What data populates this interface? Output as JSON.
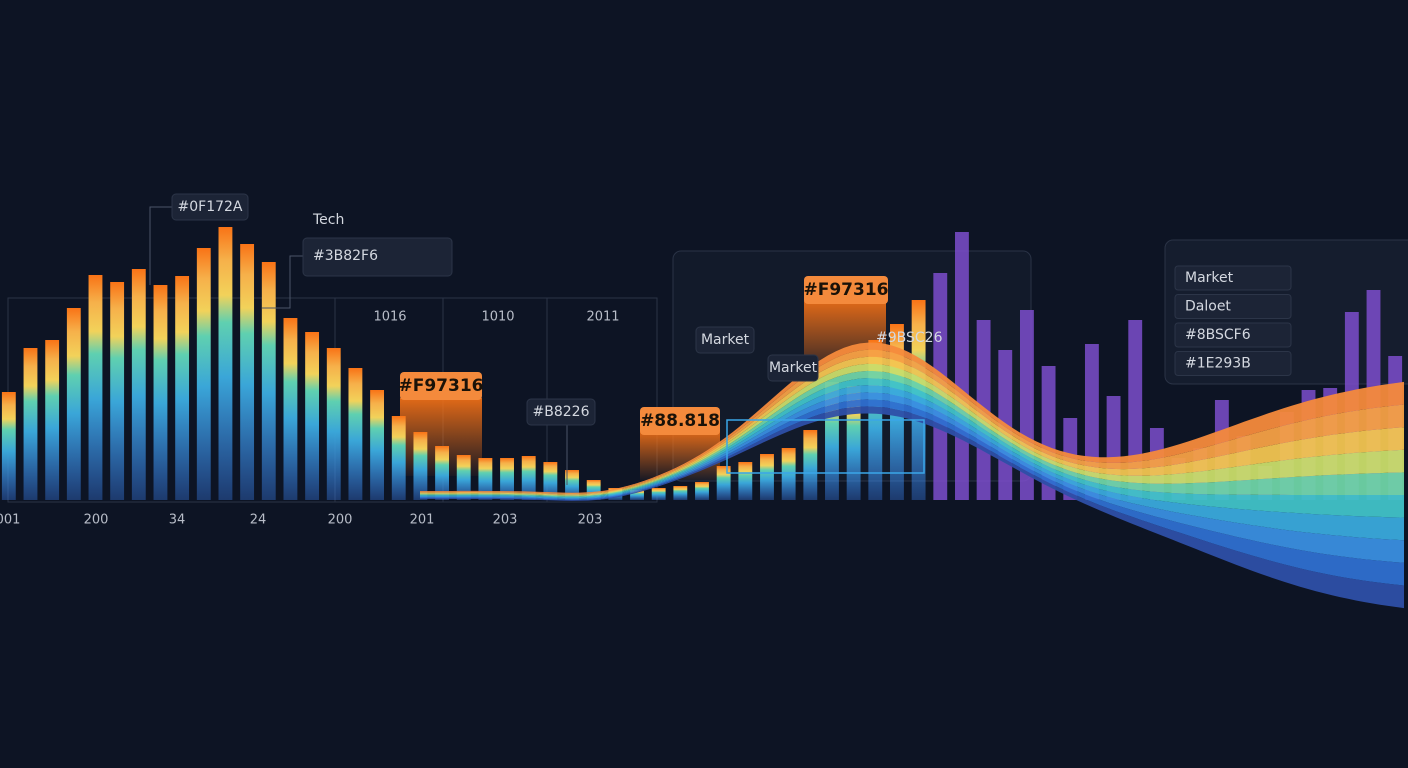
{
  "chart_data": {
    "type": "bar",
    "categories": [
      null,
      null,
      null,
      null,
      null,
      null,
      null,
      null,
      null,
      null,
      null,
      null,
      null,
      null,
      null,
      null,
      null,
      null,
      null,
      null,
      null,
      null,
      null,
      null,
      null,
      null,
      null,
      null,
      null,
      null,
      null,
      null,
      null,
      null,
      null,
      null,
      null,
      null,
      null,
      null,
      null,
      null,
      null,
      null,
      null,
      null,
      null,
      null,
      null,
      null,
      null,
      null,
      null,
      null,
      null,
      null,
      null,
      null,
      null,
      null,
      null,
      null,
      null,
      null,
      null
    ],
    "series": [
      {
        "color": "#3b82f6",
        "top_color": "#f97316",
        "values": [
          108,
          152,
          160,
          192,
          225,
          218,
          231,
          215,
          224,
          252,
          273,
          256,
          238,
          182,
          168,
          152,
          132,
          110,
          84,
          68,
          54,
          45,
          42,
          42,
          44,
          38,
          30,
          20,
          12,
          10,
          12,
          14,
          18,
          34,
          38,
          46,
          52,
          70,
          118,
          114,
          160,
          176,
          200,
          null,
          null,
          null,
          null,
          null,
          null,
          null,
          null,
          null,
          null,
          null,
          null,
          null,
          null,
          null,
          null,
          null,
          null,
          null,
          null,
          null,
          null
        ]
      },
      {
        "color": "#7c4dcc",
        "values": [
          null,
          null,
          null,
          null,
          null,
          null,
          null,
          null,
          null,
          null,
          null,
          null,
          null,
          null,
          null,
          null,
          null,
          null,
          null,
          null,
          null,
          null,
          null,
          null,
          null,
          null,
          null,
          null,
          null,
          null,
          null,
          null,
          null,
          null,
          null,
          null,
          null,
          null,
          null,
          null,
          null,
          null,
          null,
          227,
          268,
          180,
          150,
          190,
          134,
          82,
          156,
          104,
          180,
          72,
          42,
          52,
          100,
          64,
          34,
          88,
          110,
          112,
          188,
          210,
          144
        ]
      }
    ],
    "ylim": [
      0,
      300
    ],
    "x_labels": [
      "001",
      "200",
      "34",
      "24",
      "200",
      "201",
      "203",
      "203"
    ],
    "top_labels": [
      "1016",
      "1010",
      "2011"
    ],
    "annotations": [
      "#0F172A",
      "Tech",
      "#3B82F6",
      "#F97316",
      "#B8226",
      "#88.818",
      "#F97316",
      "Market",
      "Market",
      "#9BSC26"
    ],
    "legend": [
      "Market",
      "Daloet",
      "#8BSCF6",
      "#1E293B"
    ]
  }
}
